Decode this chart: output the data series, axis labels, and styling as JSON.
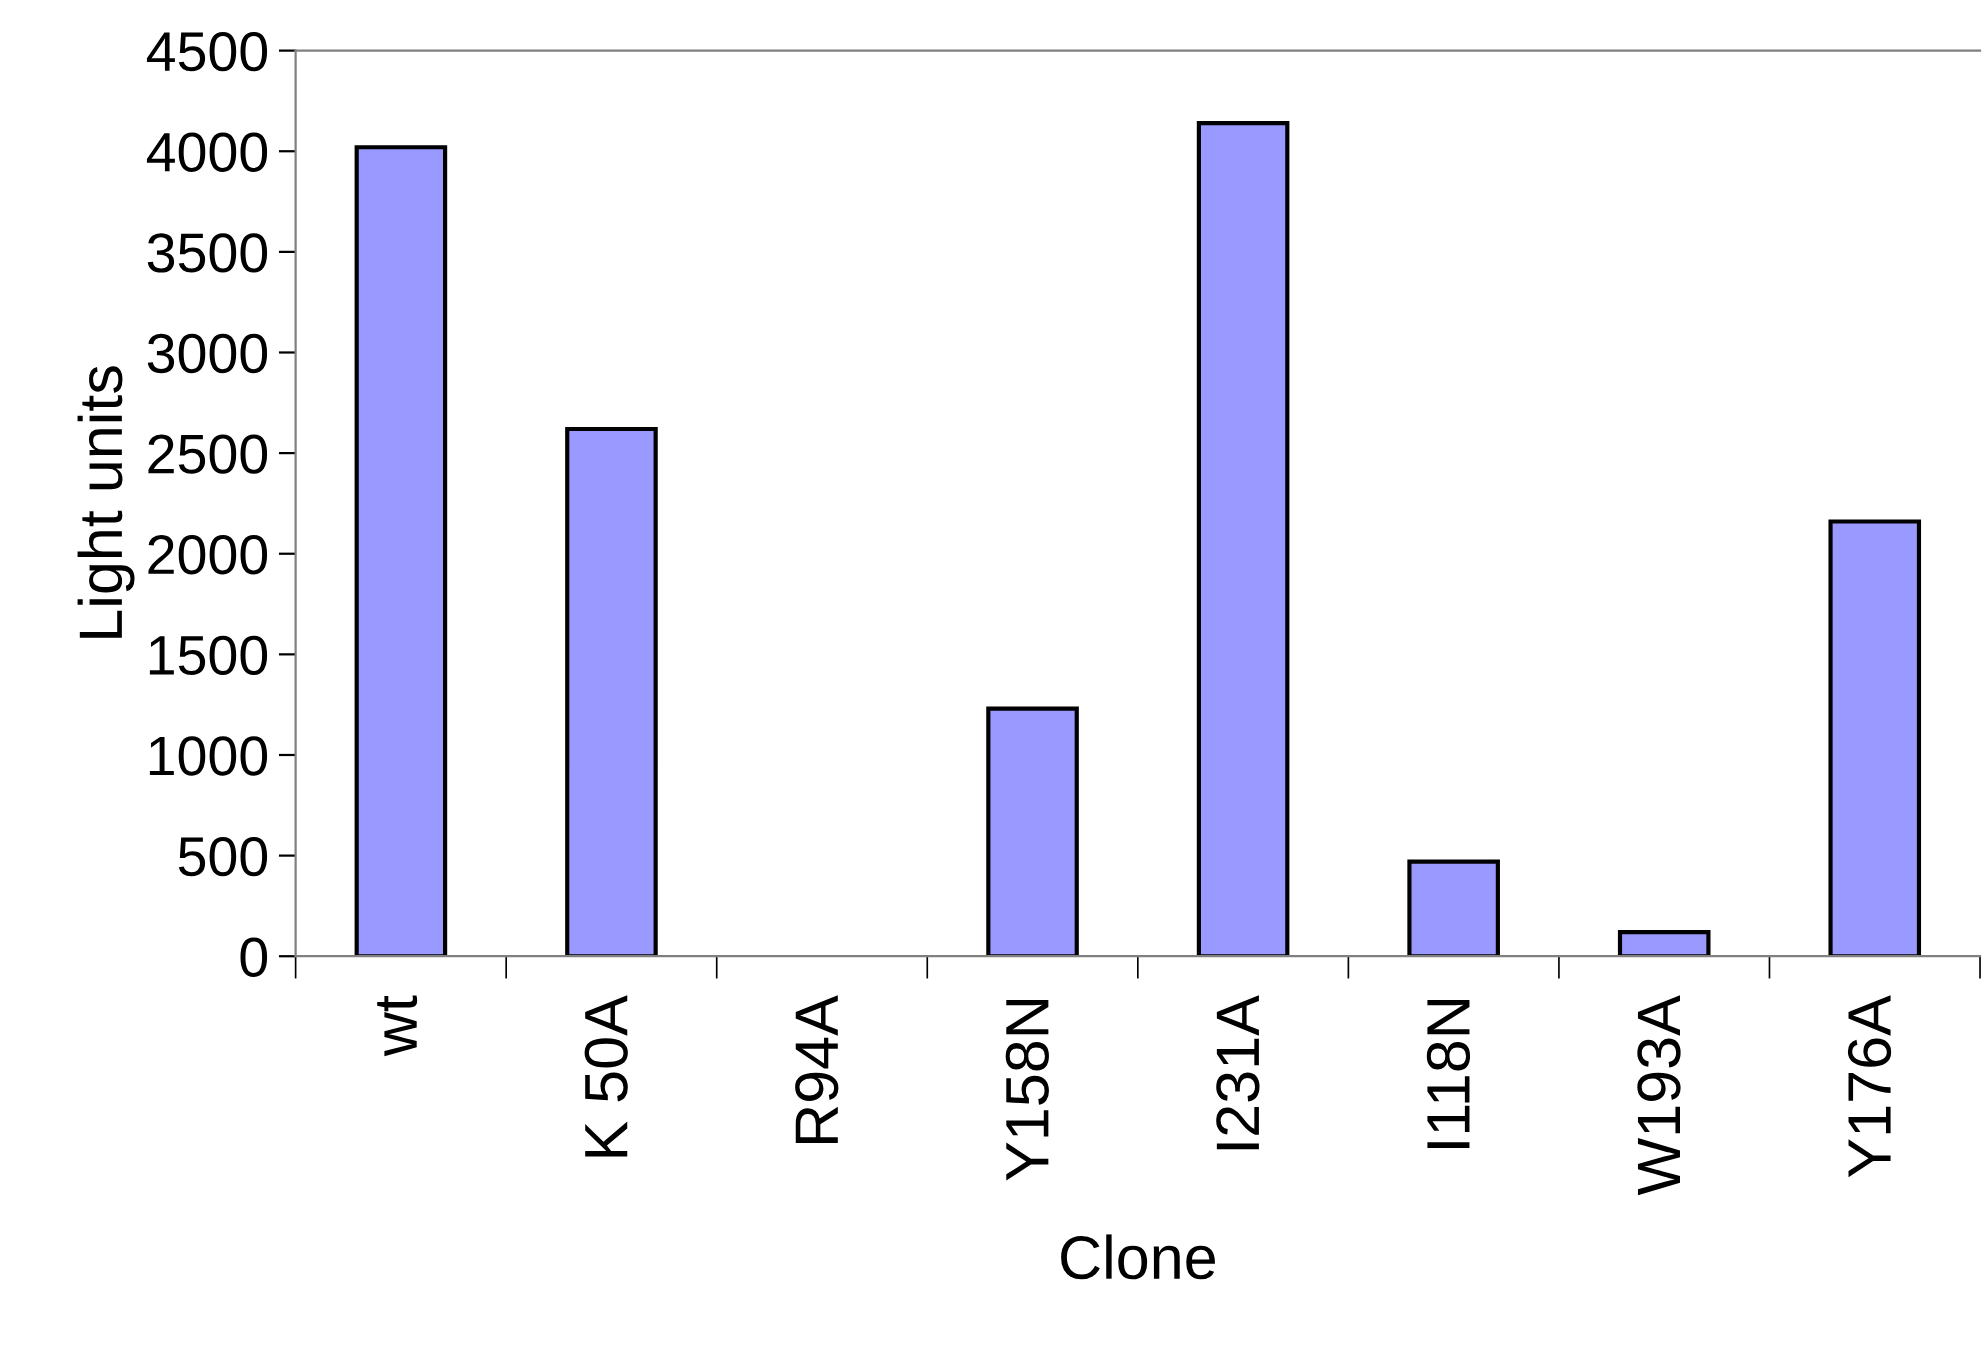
{
  "chart_data": {
    "type": "bar",
    "xlabel": "Clone",
    "ylabel": "Light units",
    "categories": [
      "wt",
      "K 50A",
      "R94A",
      "Y158N",
      "I231A",
      "I118N",
      "W193A",
      "Y176A"
    ],
    "values": [
      4020,
      2620,
      0,
      1230,
      4140,
      470,
      120,
      2160
    ],
    "color": "#9999ff",
    "ylim": [
      0,
      4500
    ],
    "yticks": [
      0,
      500,
      1000,
      1500,
      2000,
      2500,
      3000,
      3500,
      4000,
      4500
    ],
    "grid": false,
    "legend": false
  }
}
